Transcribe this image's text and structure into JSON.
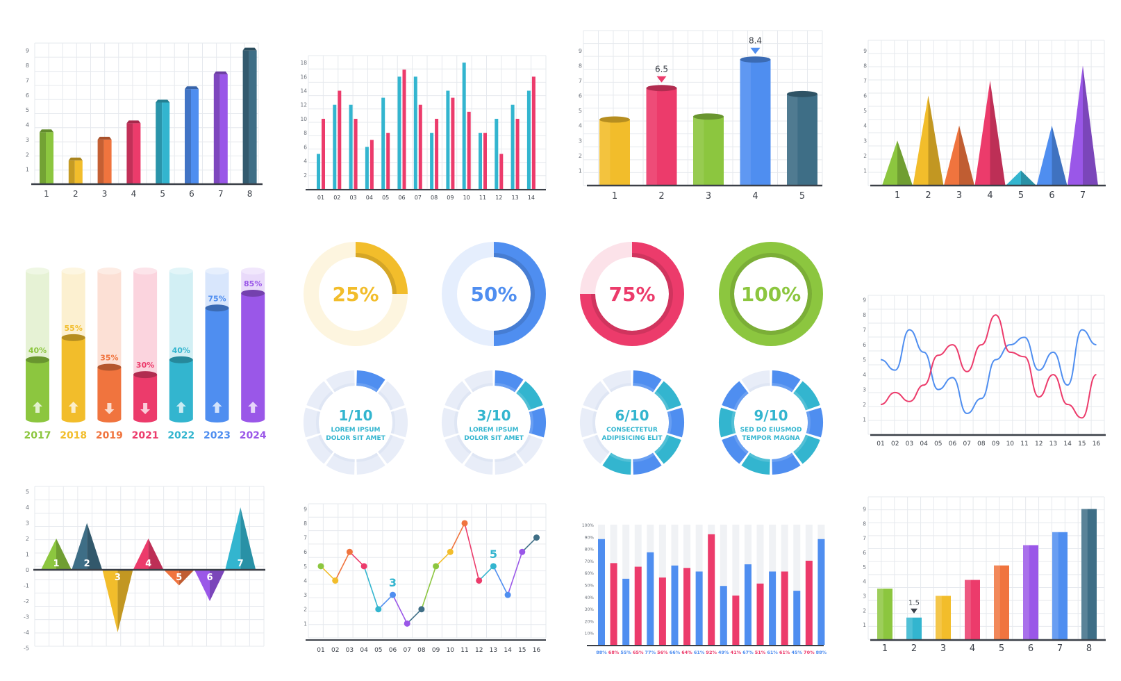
{
  "colors": {
    "green": "#8cc63f",
    "yellow": "#f2bd2b",
    "orange": "#f0743e",
    "pink": "#ec3b6b",
    "teal": "#33b5cf",
    "blue": "#4f8ef0",
    "purple": "#9a57e8",
    "slate": "#3e6e86",
    "grid": "#e6e9ee",
    "axis": "#3a3f47",
    "tick": "#6b717a",
    "track": "#e9eefb"
  },
  "chart_data": [
    {
      "type": "bar",
      "categories": [
        "1",
        "2",
        "3",
        "4",
        "5",
        "6",
        "7",
        "8"
      ],
      "values": [
        3.5,
        1.6,
        3,
        4.1,
        5.5,
        6.4,
        7.4,
        9
      ],
      "y_ticks": [
        "1",
        "2",
        "3",
        "4",
        "5",
        "6",
        "7",
        "8",
        "9"
      ],
      "ylim": [
        0,
        9.5
      ]
    },
    {
      "type": "bar",
      "categories": [
        "01",
        "02",
        "03",
        "04",
        "05",
        "06",
        "07",
        "08",
        "09",
        "10",
        "11",
        "12",
        "13",
        "14"
      ],
      "series": [
        {
          "values": [
            5,
            12,
            12,
            6,
            13,
            16,
            16,
            8,
            14,
            18,
            8,
            10,
            12,
            14
          ]
        },
        {
          "values": [
            10,
            14,
            10,
            7,
            8,
            17,
            12,
            10,
            13,
            11,
            8,
            5,
            10,
            16
          ]
        }
      ],
      "y_ticks": [
        "2",
        "4",
        "6",
        "8",
        "10",
        "12",
        "14",
        "16",
        "18"
      ],
      "ylim": [
        0,
        19
      ]
    },
    {
      "type": "bar",
      "categories": [
        "1",
        "2",
        "3",
        "4",
        "5"
      ],
      "values": [
        4.4,
        6.5,
        4.6,
        8.4,
        6.1
      ],
      "data_labels": [
        "",
        "6.5",
        "",
        "8.4",
        ""
      ],
      "y_ticks": [
        "1",
        "2",
        "3",
        "4",
        "5",
        "6",
        "7",
        "8",
        "9"
      ],
      "ylim": [
        0,
        9.5
      ]
    },
    {
      "type": "bar",
      "categories": [
        "1",
        "2",
        "3",
        "4",
        "5",
        "6",
        "7"
      ],
      "values": [
        3,
        6,
        4,
        7,
        1,
        4,
        8
      ],
      "y_ticks": [
        "1",
        "2",
        "3",
        "4",
        "5",
        "6",
        "7",
        "8",
        "9"
      ],
      "ylim": [
        0,
        9.5
      ]
    },
    {
      "type": "bar",
      "categories": [
        "2017",
        "2018",
        "2019",
        "2021",
        "2022",
        "2023",
        "2024"
      ],
      "values": [
        40,
        55,
        35,
        30,
        40,
        75,
        85
      ],
      "data_labels": [
        "40%",
        "55%",
        "35%",
        "30%",
        "40%",
        "75%",
        "85%"
      ],
      "direction": [
        "up",
        "up",
        "down",
        "down",
        "up",
        "up",
        "up"
      ],
      "ylim": [
        0,
        100
      ]
    },
    {
      "type": "pie",
      "values": [
        25,
        50,
        75,
        100
      ],
      "labels": [
        "25%",
        "50%",
        "75%",
        "100%"
      ]
    },
    {
      "type": "pie",
      "values": [
        1,
        3,
        6,
        9
      ],
      "total": 10,
      "labels": [
        "1/10",
        "3/10",
        "6/10",
        "9/10"
      ],
      "captions": [
        [
          "LOREM IPSUM",
          "DOLOR SIT AMET"
        ],
        [
          "LOREM IPSUM",
          "DOLOR SIT AMET"
        ],
        [
          "CONSECTETUR",
          "ADIPISICING ELIT"
        ],
        [
          "SED DO EIUSMOD",
          "TEMPOR MAGNA"
        ]
      ]
    },
    {
      "type": "line",
      "x": [
        "01",
        "02",
        "03",
        "04",
        "05",
        "06",
        "07",
        "08",
        "09",
        "10",
        "11",
        "12",
        "13",
        "14",
        "15",
        "16"
      ],
      "series": [
        {
          "values": [
            5,
            4.3,
            7,
            5.5,
            3,
            3.8,
            1.4,
            2.4,
            5,
            6,
            6.5,
            4.3,
            5.5,
            3.3,
            7,
            6
          ]
        },
        {
          "values": [
            2,
            2.8,
            2.2,
            3.3,
            5.3,
            6,
            4.2,
            6,
            8,
            5.5,
            5.2,
            2.5,
            4,
            2,
            1.1,
            4
          ]
        }
      ],
      "y_ticks": [
        "1",
        "2",
        "3",
        "4",
        "5",
        "6",
        "7",
        "8",
        "9"
      ],
      "ylim": [
        0,
        9.5
      ]
    },
    {
      "type": "bar",
      "categories": [
        "1",
        "2",
        "3",
        "4",
        "5",
        "6",
        "7"
      ],
      "values": [
        2,
        3,
        -4,
        2,
        -1,
        -2,
        4
      ],
      "y_ticks": [
        "5",
        "4",
        "3",
        "2",
        "1",
        "0",
        "-1",
        "-2",
        "-3",
        "-4",
        "-5"
      ],
      "ylim": [
        -5,
        5
      ]
    },
    {
      "type": "line",
      "x": [
        "01",
        "02",
        "03",
        "04",
        "05",
        "06",
        "07",
        "08",
        "09",
        "10",
        "11",
        "12",
        "13",
        "14",
        "15",
        "16"
      ],
      "values": [
        5,
        4,
        6,
        5,
        2,
        3,
        1,
        2,
        5,
        6,
        8,
        4,
        5,
        3,
        6,
        7
      ],
      "data_labels": [
        {
          "index": 5,
          "label": "3"
        },
        {
          "index": 12,
          "label": "5"
        }
      ],
      "y_ticks": [
        "1",
        "2",
        "3",
        "4",
        "5",
        "6",
        "7",
        "8",
        "9"
      ],
      "ylim": [
        0,
        9.5
      ]
    },
    {
      "type": "bar",
      "categories": [
        "88%",
        "68%",
        "55%",
        "65%",
        "77%",
        "56%",
        "66%",
        "64%",
        "61%",
        "92%",
        "49%",
        "41%",
        "67%",
        "51%",
        "61%",
        "61%",
        "45%",
        "70%",
        "88%"
      ],
      "values": [
        88,
        68,
        55,
        65,
        77,
        56,
        66,
        64,
        61,
        92,
        49,
        41,
        67,
        51,
        61,
        61,
        45,
        70,
        88
      ],
      "y_ticks": [
        "100%",
        "90%",
        "80%",
        "70%",
        "60%",
        "50%",
        "40%",
        "30%",
        "20%",
        "10%"
      ],
      "ylim": [
        0,
        100
      ]
    },
    {
      "type": "bar",
      "categories": [
        "1",
        "2",
        "3",
        "4",
        "5",
        "6",
        "7",
        "8"
      ],
      "values": [
        3.5,
        1.5,
        3,
        4.1,
        5.1,
        6.5,
        7.4,
        9
      ],
      "data_labels": [
        "",
        "1.5",
        "",
        "",
        "",
        "",
        "",
        ""
      ],
      "y_ticks": [
        "1",
        "2",
        "3",
        "4",
        "5",
        "6",
        "7",
        "8",
        "9"
      ],
      "ylim": [
        0,
        9.5
      ]
    }
  ]
}
